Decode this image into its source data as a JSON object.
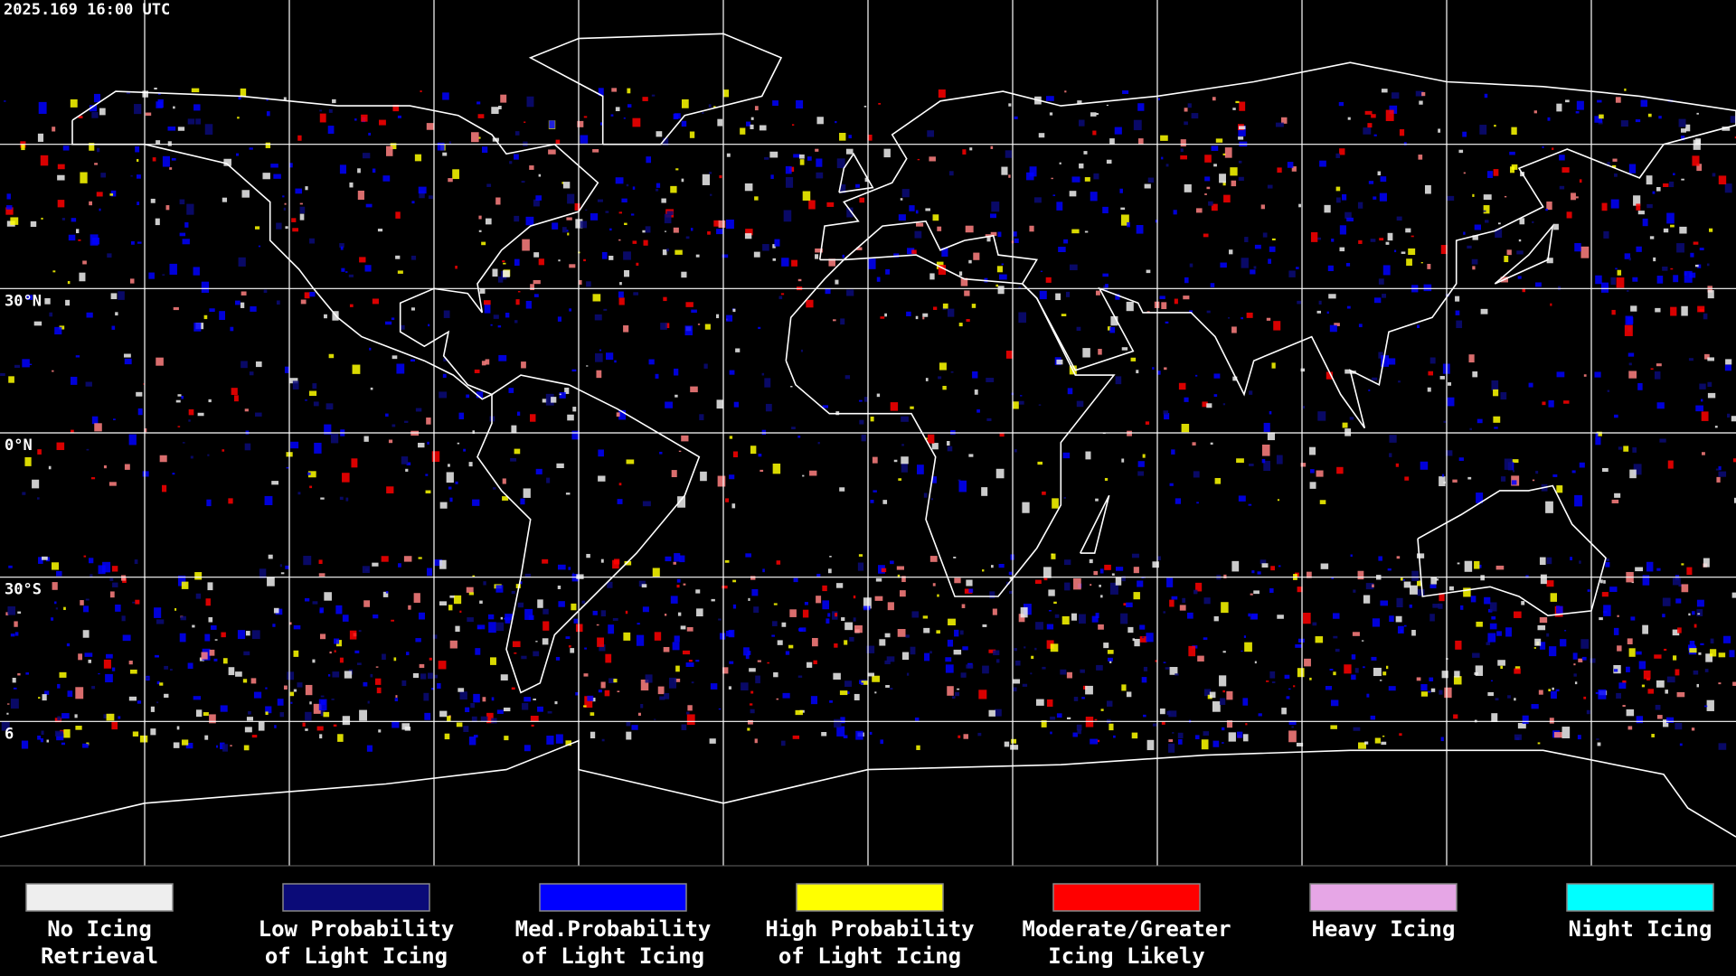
{
  "header": {
    "timestamp": "2025.169 16:00 UTC"
  },
  "map": {
    "latitude_labels": [
      "30°N",
      "0°N",
      "30°S",
      "6"
    ]
  },
  "legend": {
    "items": [
      {
        "color": "#eeeeee",
        "lines": [
          "No Icing",
          "Retrieval"
        ]
      },
      {
        "color": "#0b0b78",
        "lines": [
          "Low Probability",
          "of Light Icing"
        ]
      },
      {
        "color": "#0000ff",
        "lines": [
          "Med.Probability",
          "of Light Icing"
        ]
      },
      {
        "color": "#ffff00",
        "lines": [
          "High Probability",
          "of Light Icing"
        ]
      },
      {
        "color": "#ff0000",
        "lines": [
          "Moderate/Greater",
          "Icing Likely"
        ]
      },
      {
        "color": "#e6a6e6",
        "lines": [
          "Heavy Icing"
        ]
      },
      {
        "color": "#00ffff",
        "lines": [
          "Night Icing"
        ]
      }
    ]
  }
}
